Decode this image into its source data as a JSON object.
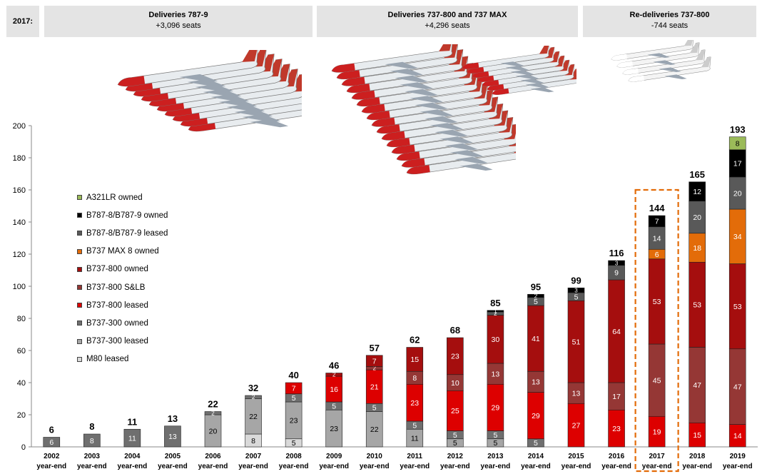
{
  "header": {
    "year": "2017:",
    "boxes": [
      {
        "title": "Deliveries 787-9",
        "sub": "+3,096 seats"
      },
      {
        "title": "Deliveries 737-800 and 737 MAX",
        "sub": "+4,296 seats"
      },
      {
        "title": "Re-deliveries 737-800",
        "sub": "-744 seats"
      }
    ]
  },
  "colors": {
    "A321LR owned": "#9bbb59",
    "B787-8/B787-9 owned": "#000000",
    "B787-8/B787-9 leased": "#595959",
    "B737 MAX 8 owned": "#e36c09",
    "B737-800 owned": "#a50e0e",
    "B737-800 S&LB": "#953735",
    "B737-800 leased": "#dd0000",
    "B737-300 owned": "#6f6f6f",
    "B737-300 leased": "#a6a6a6",
    "M80 leased": "#d9d9d9",
    "highlight": "#e36c09"
  },
  "chart_data": {
    "type": "bar",
    "stacked": true,
    "ylim": [
      0,
      200
    ],
    "yticks": [
      0,
      20,
      40,
      60,
      80,
      100,
      120,
      140,
      160,
      180,
      200
    ],
    "categories": [
      "2002",
      "2003",
      "2004",
      "2005",
      "2006",
      "2007",
      "2008",
      "2009",
      "2010",
      "2011",
      "2012",
      "2013",
      "2014",
      "2015",
      "2016",
      "2017",
      "2018",
      "2019"
    ],
    "category_sublabel": "year-end",
    "highlight_category": "2017",
    "legend": [
      "A321LR owned",
      "B787-8/B787-9 owned",
      "B787-8/B787-9 leased",
      "B737 MAX 8 owned",
      "B737-800 owned",
      "B737-800 S&LB",
      "B737-800 leased",
      "B737-300 owned",
      "B737-300 leased",
      "M80 leased"
    ],
    "totals": [
      6,
      8,
      11,
      13,
      22,
      32,
      40,
      46,
      57,
      62,
      68,
      85,
      95,
      99,
      116,
      144,
      165,
      193
    ],
    "stacks": [
      [
        {
          "s": "B737-300 owned",
          "v": 6,
          "label": "6"
        }
      ],
      [
        {
          "s": "B737-300 owned",
          "v": 8,
          "label": "8"
        }
      ],
      [
        {
          "s": "B737-300 owned",
          "v": 11,
          "label": "11"
        }
      ],
      [
        {
          "s": "B737-300 owned",
          "v": 13,
          "label": "13"
        }
      ],
      [
        {
          "s": "B737-300 leased",
          "v": 20,
          "label": "20"
        },
        {
          "s": "B737-300 owned",
          "v": 2,
          "label": "2"
        }
      ],
      [
        {
          "s": "M80 leased",
          "v": 8,
          "label": "8"
        },
        {
          "s": "B737-300 leased",
          "v": 22,
          "label": "22"
        },
        {
          "s": "B737-300 owned",
          "v": 2,
          "label": "2"
        }
      ],
      [
        {
          "s": "M80 leased",
          "v": 5,
          "label": "5"
        },
        {
          "s": "B737-300 leased",
          "v": 23,
          "label": "23"
        },
        {
          "s": "B737-300 owned",
          "v": 5,
          "label": "5"
        },
        {
          "s": "B737-800 leased",
          "v": 7,
          "label": "7"
        }
      ],
      [
        {
          "s": "B737-300 leased",
          "v": 23,
          "label": "23"
        },
        {
          "s": "B737-300 owned",
          "v": 5,
          "label": "5"
        },
        {
          "s": "B737-800 leased",
          "v": 16,
          "label": "16"
        },
        {
          "s": "B737-800 owned",
          "v": 2,
          "label": "2"
        }
      ],
      [
        {
          "s": "B737-300 leased",
          "v": 22,
          "label": "22"
        },
        {
          "s": "B737-300 owned",
          "v": 5,
          "label": "5"
        },
        {
          "s": "B737-800 leased",
          "v": 21,
          "label": "21"
        },
        {
          "s": "B737-800 S&LB",
          "v": 2,
          "label": "2"
        },
        {
          "s": "B737-800 owned",
          "v": 7,
          "label": "7"
        }
      ],
      [
        {
          "s": "B737-300 leased",
          "v": 11,
          "label": "11"
        },
        {
          "s": "B737-300 owned",
          "v": 5,
          "label": "5"
        },
        {
          "s": "B737-800 leased",
          "v": 23,
          "label": "23"
        },
        {
          "s": "B737-800 S&LB",
          "v": 8,
          "label": "8"
        },
        {
          "s": "B737-800 owned",
          "v": 15,
          "label": "15"
        }
      ],
      [
        {
          "s": "B737-300 leased",
          "v": 5,
          "label": "5"
        },
        {
          "s": "B737-300 owned",
          "v": 5,
          "label": "5"
        },
        {
          "s": "B737-800 leased",
          "v": 25,
          "label": "25"
        },
        {
          "s": "B737-800 S&LB",
          "v": 10,
          "label": "10"
        },
        {
          "s": "B737-800 owned",
          "v": 23,
          "label": "23"
        }
      ],
      [
        {
          "s": "B737-300 leased",
          "v": 5,
          "label": "5"
        },
        {
          "s": "B737-300 owned",
          "v": 5,
          "label": "5"
        },
        {
          "s": "B737-800 leased",
          "v": 29,
          "label": "29"
        },
        {
          "s": "B737-800 S&LB",
          "v": 13,
          "label": "13"
        },
        {
          "s": "B737-800 owned",
          "v": 30,
          "label": "30"
        },
        {
          "s": "B787-8/B787-9 leased",
          "v": 2,
          "label": "2"
        },
        {
          "s": "B787-8/B787-9 owned",
          "v": 1,
          "label": "1"
        }
      ],
      [
        {
          "s": "B737-300 owned",
          "v": 5,
          "label": "5"
        },
        {
          "s": "B737-800 leased",
          "v": 29,
          "label": "29"
        },
        {
          "s": "B737-800 S&LB",
          "v": 13,
          "label": "13"
        },
        {
          "s": "B737-800 owned",
          "v": 41,
          "label": "41"
        },
        {
          "s": "B787-8/B787-9 leased",
          "v": 5,
          "label": "5"
        },
        {
          "s": "B787-8/B787-9 owned",
          "v": 2,
          "label": "2"
        }
      ],
      [
        {
          "s": "B737-800 leased",
          "v": 27,
          "label": "27"
        },
        {
          "s": "B737-800 S&LB",
          "v": 13,
          "label": "13"
        },
        {
          "s": "B737-800 owned",
          "v": 51,
          "label": "51"
        },
        {
          "s": "B787-8/B787-9 leased",
          "v": 5,
          "label": "5"
        },
        {
          "s": "B787-8/B787-9 owned",
          "v": 3,
          "label": "3"
        }
      ],
      [
        {
          "s": "B737-800 leased",
          "v": 23,
          "label": "23"
        },
        {
          "s": "B737-800 S&LB",
          "v": 17,
          "label": "17"
        },
        {
          "s": "B737-800 owned",
          "v": 64,
          "label": "64"
        },
        {
          "s": "B787-8/B787-9 leased",
          "v": 9,
          "label": "9"
        },
        {
          "s": "B787-8/B787-9 owned",
          "v": 3,
          "label": "3"
        }
      ],
      [
        {
          "s": "B737-800 leased",
          "v": 19,
          "label": "19"
        },
        {
          "s": "B737-800 S&LB",
          "v": 45,
          "label": "45"
        },
        {
          "s": "B737-800 owned",
          "v": 53,
          "label": "53"
        },
        {
          "s": "B737 MAX 8 owned",
          "v": 6,
          "label": "6"
        },
        {
          "s": "B787-8/B787-9 leased",
          "v": 14,
          "label": "14"
        },
        {
          "s": "B787-8/B787-9 owned",
          "v": 7,
          "label": "7"
        }
      ],
      [
        {
          "s": "B737-800 leased",
          "v": 15,
          "label": "15"
        },
        {
          "s": "B737-800 S&LB",
          "v": 47,
          "label": "47"
        },
        {
          "s": "B737-800 owned",
          "v": 53,
          "label": "53"
        },
        {
          "s": "B737 MAX 8 owned",
          "v": 18,
          "label": "18"
        },
        {
          "s": "B787-8/B787-9 leased",
          "v": 20,
          "label": "20"
        },
        {
          "s": "B787-8/B787-9 owned",
          "v": 12,
          "label": "12"
        }
      ],
      [
        {
          "s": "B737-800 leased",
          "v": 14,
          "label": "14"
        },
        {
          "s": "B737-800 S&LB",
          "v": 47,
          "label": "47"
        },
        {
          "s": "B737-800 owned",
          "v": 53,
          "label": "53"
        },
        {
          "s": "B737 MAX 8 owned",
          "v": 34,
          "label": "34"
        },
        {
          "s": "B787-8/B787-9 leased",
          "v": 20,
          "label": "20"
        },
        {
          "s": "B787-8/B787-9 owned",
          "v": 17,
          "label": "17"
        },
        {
          "s": "A321LR owned",
          "v": 8,
          "label": "8"
        }
      ]
    ]
  }
}
